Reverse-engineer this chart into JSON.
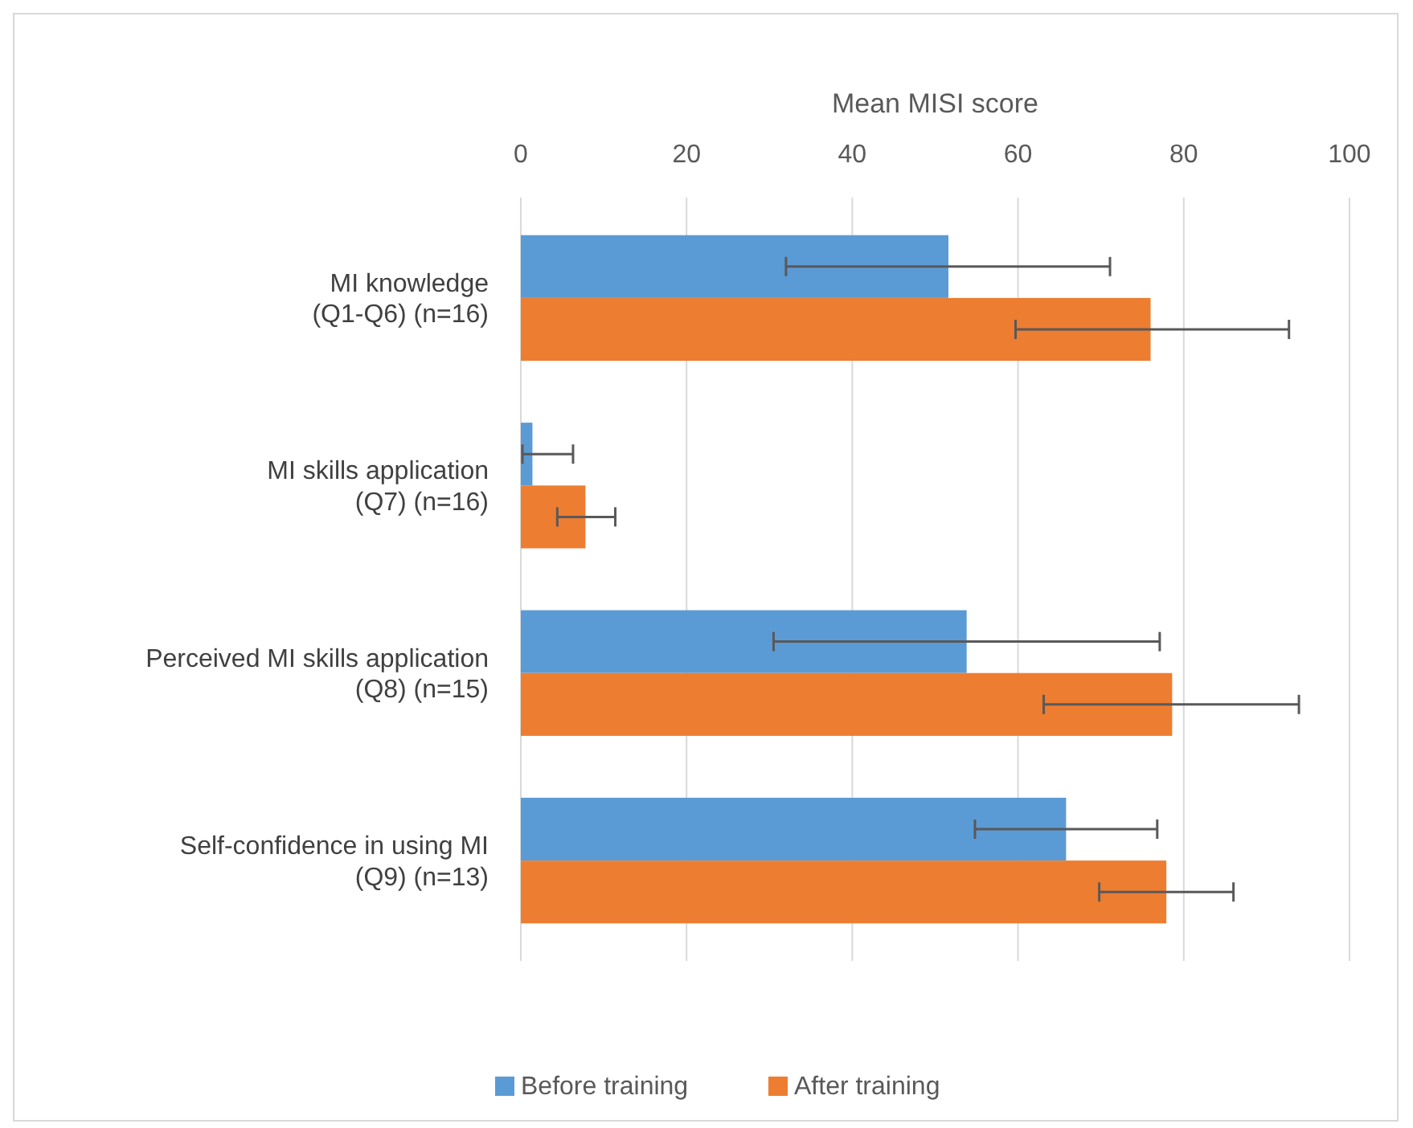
{
  "chart_data": {
    "type": "bar",
    "orientation": "horizontal",
    "xlabel": "Mean MISI score",
    "categories": [
      "MI knowledge\n(Q1-Q6) (n=16)",
      "MI skills application\n(Q7) (n=16)",
      "Perceived MI skills application\n(Q8) (n=15)",
      "Self-confidence in using MI\n(Q9) (n=13)"
    ],
    "series": [
      {
        "name": "Before training",
        "color": "#5b9bd5",
        "values": [
          51.6,
          1.4,
          53.8,
          65.8
        ],
        "errors": [
          [
            32.0,
            71.1
          ],
          [
            0.2,
            6.3
          ],
          [
            30.5,
            77.1
          ],
          [
            54.8,
            76.8
          ]
        ]
      },
      {
        "name": "After training",
        "color": "#ed7d31",
        "values": [
          76.0,
          7.8,
          78.6,
          77.9
        ],
        "errors": [
          [
            59.7,
            92.7
          ],
          [
            4.4,
            11.4
          ],
          [
            63.1,
            93.9
          ],
          [
            69.8,
            86.0
          ]
        ]
      }
    ],
    "xlim": [
      0,
      100
    ],
    "xticks": [
      0,
      20,
      40,
      60,
      80,
      100
    ],
    "grid": "x",
    "legend": "bottom"
  }
}
